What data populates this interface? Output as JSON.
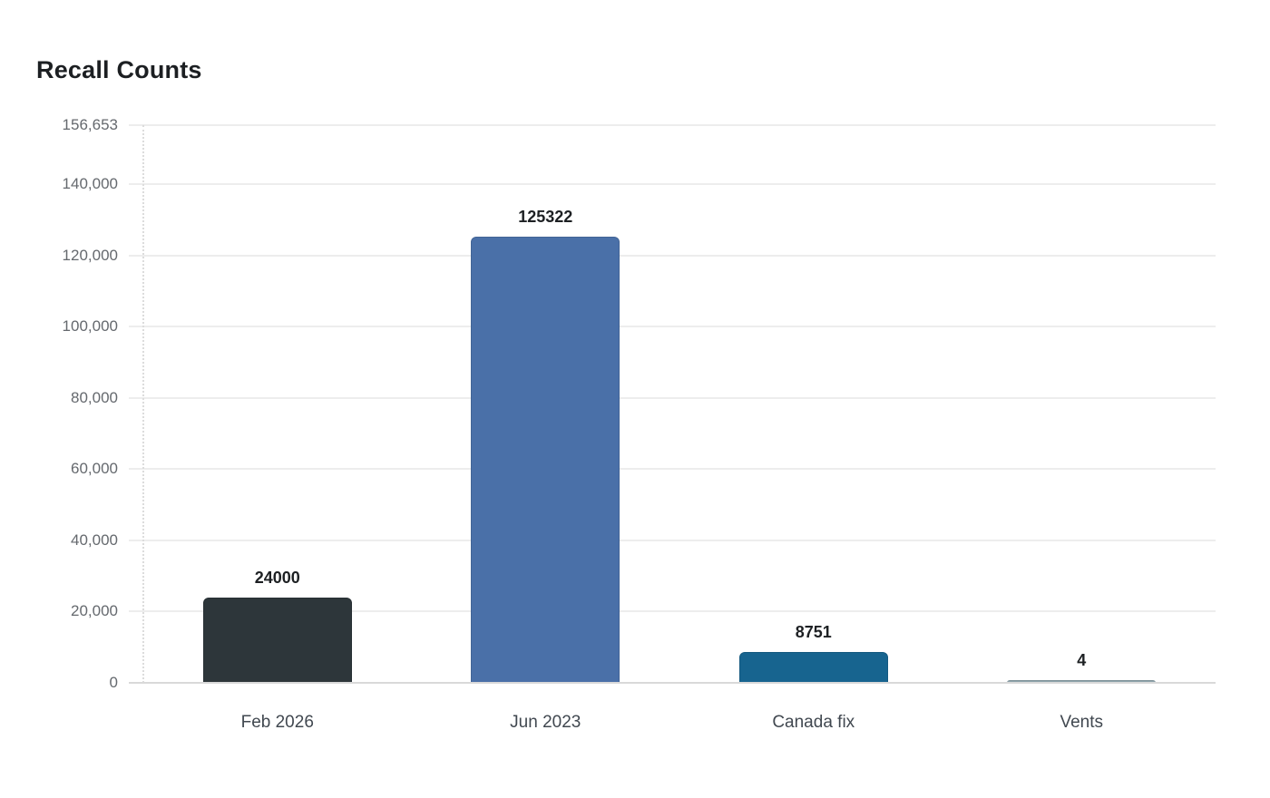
{
  "title": "Recall Counts",
  "colors": {
    "background": "#ffffff",
    "title_text": "#1c1f22",
    "gridline": "#ededed",
    "baseline": "#d9d9d9",
    "axis_dotted_line": "#dcdcdc",
    "tick_label_text": "#65696e",
    "category_label_text": "#414850",
    "value_label_text": "#1d2023"
  },
  "chart_data": {
    "type": "bar",
    "title": "Recall Counts",
    "xlabel": "",
    "ylabel": "",
    "categories": [
      "Feb 2026",
      "Jun 2023",
      "Canada fix",
      "Vents"
    ],
    "values": [
      24000,
      125322,
      8751,
      4
    ],
    "value_labels": [
      "24000",
      "125322",
      "8751",
      "4"
    ],
    "bar_colors": [
      "#2d363a",
      "#4a70a8",
      "#17648f",
      "#8ea3ab"
    ],
    "ylim": [
      0,
      156653
    ],
    "yticks": [
      0,
      20000,
      40000,
      60000,
      80000,
      100000,
      120000,
      140000,
      156653
    ],
    "ytick_labels": [
      "0",
      "20,000",
      "40,000",
      "60,000",
      "80,000",
      "100,000",
      "120,000",
      "140,000",
      "156,653"
    ],
    "grid": true,
    "legend": false
  }
}
